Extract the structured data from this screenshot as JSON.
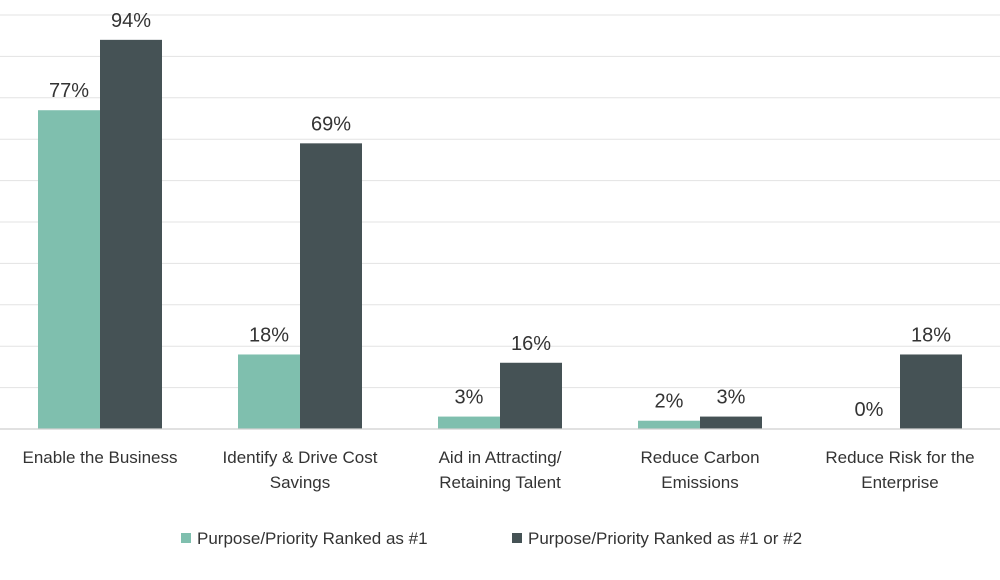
{
  "chart_data": {
    "type": "bar",
    "categories": [
      [
        "Enable the Business"
      ],
      [
        "Identify & Drive Cost",
        "Savings"
      ],
      [
        "Aid in Attracting/",
        "Retaining Talent"
      ],
      [
        "Reduce Carbon",
        "Emissions"
      ],
      [
        "Reduce Risk for the",
        "Enterprise"
      ]
    ],
    "series": [
      {
        "name": "Purpose/Priority Ranked as #1",
        "color": "#7fbfae",
        "values": [
          77,
          18,
          3,
          2,
          0
        ],
        "labels": [
          "77%",
          "18%",
          "3%",
          "2%",
          "0%"
        ]
      },
      {
        "name": "Purpose/Priority Ranked as #1 or #2",
        "color": "#455255",
        "values": [
          94,
          69,
          16,
          3,
          18
        ],
        "labels": [
          "94%",
          "69%",
          "16%",
          "3%",
          "18%"
        ]
      }
    ],
    "ylim": [
      0,
      100
    ],
    "grid": true,
    "legend_position": "bottom"
  }
}
